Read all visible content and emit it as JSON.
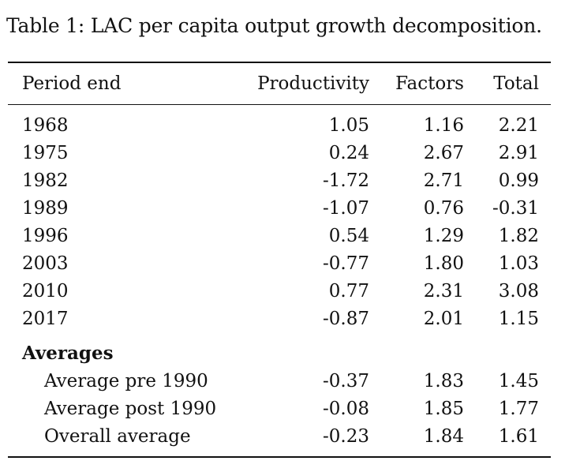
{
  "caption": "Table 1: LAC per capita output growth decomposition.",
  "columns": [
    "Period end",
    "Productivity",
    "Factors",
    "Total"
  ],
  "rows": [
    {
      "period": "1968",
      "productivity": "1.05",
      "factors": "1.16",
      "total": "2.21"
    },
    {
      "period": "1975",
      "productivity": "0.24",
      "factors": "2.67",
      "total": "2.91"
    },
    {
      "period": "1982",
      "productivity": "-1.72",
      "factors": "2.71",
      "total": "0.99"
    },
    {
      "period": "1989",
      "productivity": "-1.07",
      "factors": "0.76",
      "total": "-0.31"
    },
    {
      "period": "1996",
      "productivity": "0.54",
      "factors": "1.29",
      "total": "1.82"
    },
    {
      "period": "2003",
      "productivity": "-0.77",
      "factors": "1.80",
      "total": "1.03"
    },
    {
      "period": "2010",
      "productivity": "0.77",
      "factors": "2.31",
      "total": "3.08"
    },
    {
      "period": "2017",
      "productivity": "-0.87",
      "factors": "2.01",
      "total": "1.15"
    }
  ],
  "averages": {
    "title": "Averages",
    "rows": [
      {
        "label": "Average pre 1990",
        "productivity": "-0.37",
        "factors": "1.83",
        "total": "1.45"
      },
      {
        "label": "Average post 1990",
        "productivity": "-0.08",
        "factors": "1.85",
        "total": "1.77"
      },
      {
        "label": "Overall average",
        "productivity": "-0.23",
        "factors": "1.84",
        "total": "1.61"
      }
    ]
  }
}
